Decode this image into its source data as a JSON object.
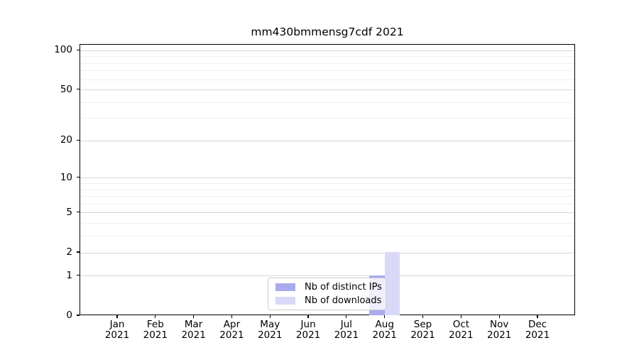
{
  "title": "mm430bmmensg7cdf 2021",
  "legend": {
    "items": [
      {
        "label": "Nb of distinct IPs",
        "color": "#aaaaee"
      },
      {
        "label": "Nb of downloads",
        "color": "#d9d9f7"
      }
    ]
  },
  "chart_data": {
    "type": "bar",
    "title": "mm430bmmensg7cdf 2021",
    "categories": [
      "Jan 2021",
      "Feb 2021",
      "Mar 2021",
      "Apr 2021",
      "May 2021",
      "Jun 2021",
      "Jul 2021",
      "Aug 2021",
      "Sep 2021",
      "Oct 2021",
      "Nov 2021",
      "Dec 2021"
    ],
    "series": [
      {
        "name": "Nb of distinct IPs",
        "color": "#aaaaee",
        "values": [
          0,
          0,
          0,
          0,
          0,
          0,
          0,
          1,
          0,
          0,
          0,
          0
        ]
      },
      {
        "name": "Nb of downloads",
        "color": "#d9d9f7",
        "values": [
          0,
          0,
          0,
          0,
          0,
          0,
          0,
          2,
          0,
          0,
          0,
          0
        ]
      }
    ],
    "xlabel": "",
    "ylabel": "",
    "yscale": "log1p",
    "ylim": [
      0,
      110.7
    ],
    "y_ticks": [
      0,
      1,
      2,
      5,
      10,
      20,
      50,
      100
    ],
    "y_minor_grid": [
      3,
      4,
      6,
      7,
      8,
      9,
      30,
      40,
      60,
      70,
      80,
      90
    ],
    "grid": "horizontal",
    "legend_position": "lower center"
  }
}
